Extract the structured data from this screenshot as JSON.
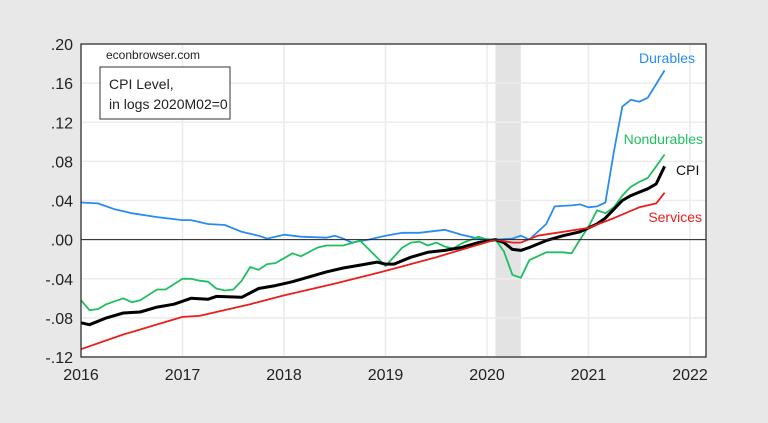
{
  "chart_data": {
    "type": "line",
    "title": "",
    "watermark": "econbrowser.com",
    "annotation": [
      "CPI Level,",
      "in logs 2020M02=0"
    ],
    "xlabel": "",
    "ylabel": "",
    "xlim": [
      2016,
      2022.15
    ],
    "ylim": [
      -0.12,
      0.2
    ],
    "x_ticks": [
      "2016",
      "2017",
      "2018",
      "2019",
      "2020",
      "2021",
      "2022"
    ],
    "y_ticks": [
      ".20",
      ".16",
      ".12",
      ".08",
      ".04",
      ".00",
      "-.04",
      "-.08",
      "-.12"
    ],
    "grid": true,
    "recession_shading": {
      "start": "2020-02",
      "end": "2020-04",
      "color": "#e3e3e3"
    },
    "series": [
      {
        "name": "Durables",
        "color": "#2a8cf0",
        "points": [
          [
            "2016-01",
            0.038
          ],
          [
            "2016-03",
            0.037
          ],
          [
            "2016-05",
            0.031
          ],
          [
            "2016-07",
            0.027
          ],
          [
            "2016-10",
            0.023
          ],
          [
            "2017-01",
            0.02
          ],
          [
            "2017-02",
            0.02
          ],
          [
            "2017-04",
            0.016
          ],
          [
            "2017-06",
            0.015
          ],
          [
            "2017-08",
            0.008
          ],
          [
            "2017-10",
            0.004
          ],
          [
            "2017-11",
            0.001
          ],
          [
            "2018-01",
            0.005
          ],
          [
            "2018-03",
            0.003
          ],
          [
            "2018-06",
            0.002
          ],
          [
            "2018-07",
            0.004
          ],
          [
            "2018-08",
            0.001
          ],
          [
            "2018-09",
            -0.003
          ],
          [
            "2018-11",
            0.0
          ],
          [
            "2019-01",
            0.004
          ],
          [
            "2019-03",
            0.007
          ],
          [
            "2019-05",
            0.007
          ],
          [
            "2019-07",
            0.009
          ],
          [
            "2019-08",
            0.01
          ],
          [
            "2019-10",
            0.005
          ],
          [
            "2019-12",
            0.001
          ],
          [
            "2020-02",
            0.0
          ],
          [
            "2020-04",
            0.001
          ],
          [
            "2020-05",
            0.004
          ],
          [
            "2020-06",
            0.0
          ],
          [
            "2020-08",
            0.016
          ],
          [
            "2020-09",
            0.034
          ],
          [
            "2020-11",
            0.035
          ],
          [
            "2020-12",
            0.036
          ],
          [
            "2021-01",
            0.033
          ],
          [
            "2021-02",
            0.034
          ],
          [
            "2021-03",
            0.038
          ],
          [
            "2021-04",
            0.09
          ],
          [
            "2021-05",
            0.136
          ],
          [
            "2021-06",
            0.143
          ],
          [
            "2021-07",
            0.141
          ],
          [
            "2021-08",
            0.145
          ],
          [
            "2021-09",
            0.159
          ],
          [
            "2021-10",
            0.173
          ]
        ]
      },
      {
        "name": "Nondurables",
        "color": "#1fbf5f",
        "points": [
          [
            "2016-01",
            -0.062
          ],
          [
            "2016-02",
            -0.072
          ],
          [
            "2016-03",
            -0.071
          ],
          [
            "2016-04",
            -0.066
          ],
          [
            "2016-06",
            -0.06
          ],
          [
            "2016-07",
            -0.064
          ],
          [
            "2016-08",
            -0.062
          ],
          [
            "2016-10",
            -0.051
          ],
          [
            "2016-11",
            -0.051
          ],
          [
            "2017-01",
            -0.04
          ],
          [
            "2017-02",
            -0.04
          ],
          [
            "2017-03",
            -0.042
          ],
          [
            "2017-04",
            -0.043
          ],
          [
            "2017-05",
            -0.05
          ],
          [
            "2017-06",
            -0.052
          ],
          [
            "2017-07",
            -0.051
          ],
          [
            "2017-08",
            -0.042
          ],
          [
            "2017-09",
            -0.028
          ],
          [
            "2017-10",
            -0.031
          ],
          [
            "2017-11",
            -0.025
          ],
          [
            "2017-12",
            -0.024
          ],
          [
            "2018-02",
            -0.014
          ],
          [
            "2018-03",
            -0.017
          ],
          [
            "2018-05",
            -0.008
          ],
          [
            "2018-06",
            -0.006
          ],
          [
            "2018-08",
            -0.006
          ],
          [
            "2018-10",
            -0.001
          ],
          [
            "2019-01",
            -0.027
          ],
          [
            "2019-03",
            -0.008
          ],
          [
            "2019-04",
            -0.003
          ],
          [
            "2019-05",
            -0.002
          ],
          [
            "2019-06",
            -0.006
          ],
          [
            "2019-07",
            -0.003
          ],
          [
            "2019-08",
            -0.007
          ],
          [
            "2019-09",
            -0.009
          ],
          [
            "2019-10",
            -0.004
          ],
          [
            "2019-12",
            0.003
          ],
          [
            "2020-01",
            0.0
          ],
          [
            "2020-02",
            0.0
          ],
          [
            "2020-03",
            -0.012
          ],
          [
            "2020-04",
            -0.036
          ],
          [
            "2020-05",
            -0.039
          ],
          [
            "2020-06",
            -0.021
          ],
          [
            "2020-08",
            -0.013
          ],
          [
            "2020-10",
            -0.013
          ],
          [
            "2020-11",
            -0.014
          ],
          [
            "2020-12",
            0.0
          ],
          [
            "2021-01",
            0.013
          ],
          [
            "2021-02",
            0.03
          ],
          [
            "2021-03",
            0.027
          ],
          [
            "2021-04",
            0.033
          ],
          [
            "2021-05",
            0.045
          ],
          [
            "2021-06",
            0.054
          ],
          [
            "2021-07",
            0.059
          ],
          [
            "2021-08",
            0.063
          ],
          [
            "2021-09",
            0.075
          ],
          [
            "2021-10",
            0.087
          ]
        ]
      },
      {
        "name": "CPI",
        "color": "#000000",
        "points": [
          [
            "2016-01",
            -0.085
          ],
          [
            "2016-02",
            -0.087
          ],
          [
            "2016-04",
            -0.08
          ],
          [
            "2016-06",
            -0.075
          ],
          [
            "2016-08",
            -0.074
          ],
          [
            "2016-10",
            -0.069
          ],
          [
            "2016-12",
            -0.066
          ],
          [
            "2017-02",
            -0.06
          ],
          [
            "2017-04",
            -0.061
          ],
          [
            "2017-05",
            -0.058
          ],
          [
            "2017-08",
            -0.059
          ],
          [
            "2017-10",
            -0.05
          ],
          [
            "2017-12",
            -0.047
          ],
          [
            "2018-02",
            -0.043
          ],
          [
            "2018-04",
            -0.038
          ],
          [
            "2018-06",
            -0.033
          ],
          [
            "2018-08",
            -0.029
          ],
          [
            "2018-10",
            -0.026
          ],
          [
            "2018-12",
            -0.023
          ],
          [
            "2019-01",
            -0.025
          ],
          [
            "2019-02",
            -0.025
          ],
          [
            "2019-04",
            -0.018
          ],
          [
            "2019-06",
            -0.013
          ],
          [
            "2019-08",
            -0.011
          ],
          [
            "2019-10",
            -0.008
          ],
          [
            "2019-12",
            -0.003
          ],
          [
            "2020-02",
            0.0
          ],
          [
            "2020-03",
            -0.003
          ],
          [
            "2020-04",
            -0.01
          ],
          [
            "2020-05",
            -0.011
          ],
          [
            "2020-06",
            -0.008
          ],
          [
            "2020-08",
            -0.001
          ],
          [
            "2020-10",
            0.004
          ],
          [
            "2020-12",
            0.008
          ],
          [
            "2021-02",
            0.016
          ],
          [
            "2021-03",
            0.022
          ],
          [
            "2021-05",
            0.04
          ],
          [
            "2021-06",
            0.045
          ],
          [
            "2021-08",
            0.052
          ],
          [
            "2021-09",
            0.057
          ],
          [
            "2021-10",
            0.075
          ]
        ]
      },
      {
        "name": "Services",
        "color": "#e8201c",
        "points": [
          [
            "2016-01",
            -0.112
          ],
          [
            "2016-06",
            -0.097
          ],
          [
            "2017-01",
            -0.079
          ],
          [
            "2017-03",
            -0.078
          ],
          [
            "2017-09",
            -0.066
          ],
          [
            "2018-01",
            -0.057
          ],
          [
            "2018-07",
            -0.045
          ],
          [
            "2019-01",
            -0.032
          ],
          [
            "2019-07",
            -0.018
          ],
          [
            "2020-02",
            0.0
          ],
          [
            "2020-04",
            -0.003
          ],
          [
            "2020-05",
            -0.003
          ],
          [
            "2020-07",
            0.004
          ],
          [
            "2020-10",
            0.008
          ],
          [
            "2021-01",
            0.012
          ],
          [
            "2021-04",
            0.022
          ],
          [
            "2021-07",
            0.033
          ],
          [
            "2021-09",
            0.037
          ],
          [
            "2021-10",
            0.048
          ]
        ]
      }
    ]
  }
}
